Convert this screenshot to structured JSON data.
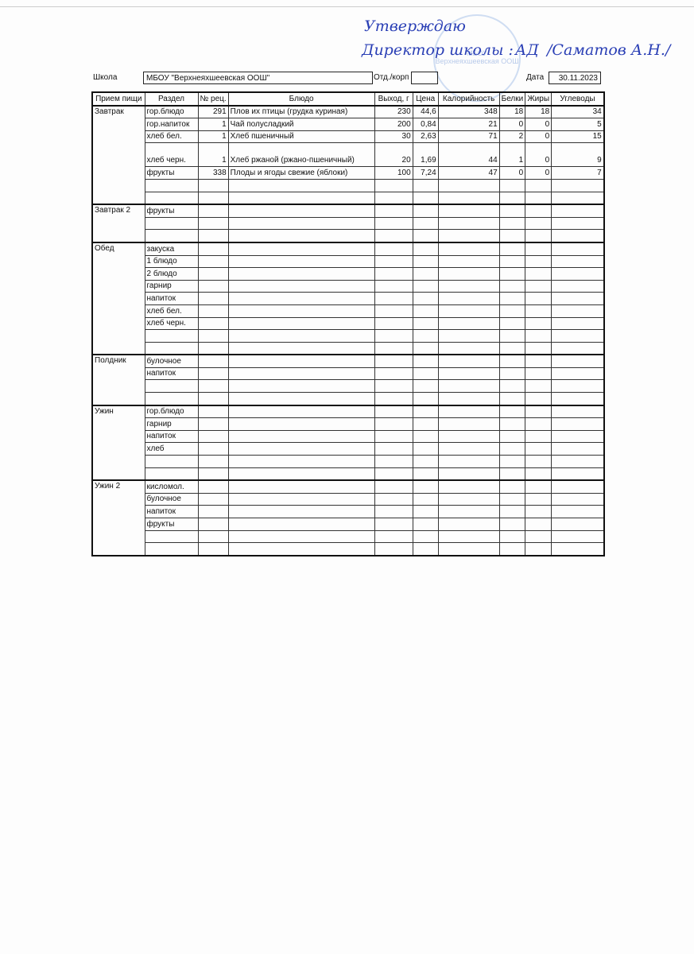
{
  "approval": {
    "line1": "Утверждаю",
    "line2": "Директор школы :",
    "signature": "АД",
    "name": "/Саматов А.Н./",
    "stamp_text": "МБОУ Верхнеяхшеевская ООШ"
  },
  "header": {
    "school_label": "Школа",
    "school_value": "МБОУ \"Верхнеяхшеевская ООШ\"",
    "dept_label": "Отд./корп",
    "dept_value": "",
    "date_label": "Дата",
    "date_value": "30.11.2023"
  },
  "columns": [
    "Прием пищи",
    "Раздел",
    "№ рец.",
    "Блюдо",
    "Выход, г",
    "Цена",
    "Калорийность",
    "Белки",
    "Жиры",
    "Углеводы"
  ],
  "meals": [
    {
      "name": "Завтрак",
      "rows": [
        [
          "гор.блюдо",
          "291",
          "Плов их птицы (грудка куриная)",
          "230",
          "44,6",
          "348",
          "18",
          "18",
          "34"
        ],
        [
          "гор.напиток",
          "1",
          "Чай полусладкий",
          "200",
          "0,84",
          "21",
          "0",
          "0",
          "5"
        ],
        [
          "хлеб бел.",
          "1",
          "Хлеб пшеничный",
          "30",
          "2,63",
          "71",
          "2",
          "0",
          "15"
        ],
        [
          "хлеб черн.",
          "1",
          "Хлеб ржаной (ржано-пшеничный)",
          "20",
          "1,69",
          "44",
          "1",
          "0",
          "9"
        ],
        [
          "фрукты",
          "338",
          "Плоды и ягоды свежие (яблоки)",
          "100",
          "7,24",
          "47",
          "0",
          "0",
          "7"
        ],
        [
          "",
          "",
          "",
          "",
          "",
          "",
          "",
          "",
          ""
        ],
        [
          "",
          "",
          "",
          "",
          "",
          "",
          "",
          "",
          ""
        ]
      ]
    },
    {
      "name": "Завтрак 2",
      "rows": [
        [
          "фрукты",
          "",
          "",
          "",
          "",
          "",
          "",
          "",
          ""
        ],
        [
          "",
          "",
          "",
          "",
          "",
          "",
          "",
          "",
          ""
        ],
        [
          "",
          "",
          "",
          "",
          "",
          "",
          "",
          "",
          ""
        ]
      ]
    },
    {
      "name": "Обед",
      "rows": [
        [
          "закуска",
          "",
          "",
          "",
          "",
          "",
          "",
          "",
          ""
        ],
        [
          "1 блюдо",
          "",
          "",
          "",
          "",
          "",
          "",
          "",
          ""
        ],
        [
          "2 блюдо",
          "",
          "",
          "",
          "",
          "",
          "",
          "",
          ""
        ],
        [
          "гарнир",
          "",
          "",
          "",
          "",
          "",
          "",
          "",
          ""
        ],
        [
          "напиток",
          "",
          "",
          "",
          "",
          "",
          "",
          "",
          ""
        ],
        [
          "хлеб бел.",
          "",
          "",
          "",
          "",
          "",
          "",
          "",
          ""
        ],
        [
          "хлеб черн.",
          "",
          "",
          "",
          "",
          "",
          "",
          "",
          ""
        ],
        [
          "",
          "",
          "",
          "",
          "",
          "",
          "",
          "",
          ""
        ],
        [
          "",
          "",
          "",
          "",
          "",
          "",
          "",
          "",
          ""
        ]
      ]
    },
    {
      "name": "Полдник",
      "rows": [
        [
          "булочное",
          "",
          "",
          "",
          "",
          "",
          "",
          "",
          ""
        ],
        [
          "напиток",
          "",
          "",
          "",
          "",
          "",
          "",
          "",
          ""
        ],
        [
          "",
          "",
          "",
          "",
          "",
          "",
          "",
          "",
          ""
        ],
        [
          "",
          "",
          "",
          "",
          "",
          "",
          "",
          "",
          ""
        ]
      ]
    },
    {
      "name": "Ужин",
      "rows": [
        [
          "гор.блюдо",
          "",
          "",
          "",
          "",
          "",
          "",
          "",
          ""
        ],
        [
          "гарнир",
          "",
          "",
          "",
          "",
          "",
          "",
          "",
          ""
        ],
        [
          "напиток",
          "",
          "",
          "",
          "",
          "",
          "",
          "",
          ""
        ],
        [
          "хлеб",
          "",
          "",
          "",
          "",
          "",
          "",
          "",
          ""
        ],
        [
          "",
          "",
          "",
          "",
          "",
          "",
          "",
          "",
          ""
        ],
        [
          "",
          "",
          "",
          "",
          "",
          "",
          "",
          "",
          ""
        ]
      ]
    },
    {
      "name": "Ужин 2",
      "rows": [
        [
          "кисломол.",
          "",
          "",
          "",
          "",
          "",
          "",
          "",
          ""
        ],
        [
          "булочное",
          "",
          "",
          "",
          "",
          "",
          "",
          "",
          ""
        ],
        [
          "напиток",
          "",
          "",
          "",
          "",
          "",
          "",
          "",
          ""
        ],
        [
          "фрукты",
          "",
          "",
          "",
          "",
          "",
          "",
          "",
          ""
        ],
        [
          "",
          "",
          "",
          "",
          "",
          "",
          "",
          "",
          ""
        ],
        [
          "",
          "",
          "",
          "",
          "",
          "",
          "",
          "",
          ""
        ]
      ]
    }
  ]
}
